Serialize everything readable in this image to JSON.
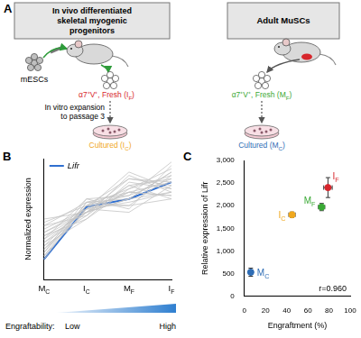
{
  "panel_a": {
    "letter": "A",
    "left_header": [
      "In vivo differentiated",
      "skeletal myogenic",
      "progenitors"
    ],
    "right_header": [
      "Adult MuSCs"
    ],
    "cells": "mESCs",
    "expansion": [
      "In vitro expansion",
      "to passage 3"
    ],
    "left_fresh": {
      "parts": [
        {
          "t": "α7⁺V⁺, Fresh (I"
        },
        {
          "sub": "F"
        },
        {
          "t": ")"
        }
      ],
      "color": "#d7262c"
    },
    "left_cultured": {
      "parts": [
        {
          "t": "Cultured (I"
        },
        {
          "sub": "C"
        },
        {
          "t": ")"
        }
      ],
      "color": "#f0a81e"
    },
    "right_fresh": {
      "parts": [
        {
          "t": "α7⁺V⁺, Fresh (M"
        },
        {
          "sub": "F"
        },
        {
          "t": ")"
        }
      ],
      "color": "#3aa935"
    },
    "right_cultured": {
      "parts": [
        {
          "t": "Cultured (M"
        },
        {
          "sub": "C"
        },
        {
          "t": ")"
        }
      ],
      "color": "#2f6db5"
    }
  },
  "chart_data": [
    {
      "type": "line",
      "panel": "B",
      "y_label": "Normalized expression",
      "categories": [
        "MC",
        "IC",
        "MF",
        "IF"
      ],
      "ylim": [
        0,
        1.8
      ],
      "tick_labels": "x",
      "grid": false,
      "legend": "upper left",
      "series": [
        {
          "name": "Lifr",
          "color": "#2f6fd0",
          "values": [
            0.3,
            1.08,
            1.2,
            1.45
          ]
        }
      ],
      "background_series": {
        "color": "#c4c4c4",
        "values": [
          [
            0.55,
            1.05,
            1.15,
            1.3
          ],
          [
            0.7,
            1.0,
            1.3,
            1.25
          ],
          [
            0.45,
            1.1,
            1.25,
            1.5
          ],
          [
            0.8,
            0.95,
            1.4,
            1.2
          ],
          [
            0.35,
            1.15,
            1.1,
            1.55
          ],
          [
            0.6,
            1.0,
            1.5,
            1.4
          ],
          [
            0.5,
            1.1,
            1.35,
            1.65
          ],
          [
            0.9,
            1.0,
            1.2,
            1.3
          ],
          [
            0.4,
            1.2,
            1.05,
            1.7
          ],
          [
            0.65,
            0.9,
            1.45,
            1.35
          ],
          [
            0.75,
            1.05,
            1.3,
            1.45
          ],
          [
            0.3,
            1.15,
            1.2,
            1.6
          ],
          [
            0.55,
            0.95,
            1.55,
            1.3
          ],
          [
            0.85,
            1.1,
            1.1,
            1.2
          ],
          [
            0.45,
            1.0,
            1.4,
            1.5
          ],
          [
            0.6,
            1.2,
            1.25,
            1.75
          ],
          [
            0.7,
            1.05,
            1.0,
            1.4
          ],
          [
            0.5,
            0.9,
            1.35,
            1.55
          ],
          [
            0.4,
            1.1,
            1.5,
            1.45
          ],
          [
            0.8,
            1.15,
            1.3,
            1.25
          ],
          [
            0.65,
            1.0,
            1.2,
            1.6
          ],
          [
            0.35,
            1.05,
            1.6,
            1.35
          ]
        ]
      },
      "annotations": {
        "label": "Engraftability:",
        "low": "Low",
        "high": "High"
      }
    },
    {
      "type": "scatter",
      "panel": "C",
      "x_label": "Engraftment (%)",
      "y_label": "Relative expression of Lifr",
      "xlim": [
        0,
        100
      ],
      "xticks": [
        0,
        20,
        40,
        60,
        80,
        100
      ],
      "ylim": [
        0,
        3000
      ],
      "yticks": [
        0,
        500,
        1000,
        1500,
        2000,
        2500,
        3000
      ],
      "grid": false,
      "labels": [
        "MC",
        "IC",
        "MF",
        "IF"
      ],
      "x": [
        6,
        45,
        73,
        79
      ],
      "values": [
        530,
        1800,
        1970,
        2400
      ],
      "x_err": [
        2,
        3,
        3,
        4
      ],
      "y_err": [
        90,
        60,
        80,
        220
      ],
      "colors": [
        "#2f6db5",
        "#f0a81e",
        "#3aa935",
        "#d7262c"
      ],
      "annotations": [
        "r=0.960"
      ]
    }
  ]
}
